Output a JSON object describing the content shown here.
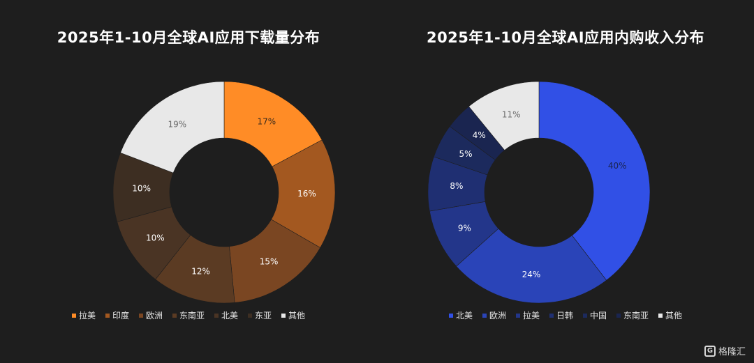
{
  "chart_data": [
    {
      "type": "pie",
      "title": "2025年1-10月全球AI应用下载量分布",
      "categories": [
        "拉美",
        "印度",
        "欧洲",
        "东南亚",
        "北美",
        "东亚",
        "其他"
      ],
      "values": [
        17,
        16,
        15,
        12,
        10,
        10,
        19
      ],
      "labels": [
        "17%",
        "16%",
        "15%",
        "12%",
        "10%",
        "10%",
        "19%"
      ],
      "colors": [
        "#ff8c26",
        "#a35820",
        "#7a4622",
        "#5b3b23",
        "#4a3424",
        "#3d2e22",
        "#e8e8e8"
      ],
      "label_colors": [
        "#3a2a1c",
        "#ffffff",
        "#ffffff",
        "#ffffff",
        "#ffffff",
        "#ffffff",
        "#6b6b6b"
      ],
      "legend": [
        "拉美",
        "印度",
        "欧洲",
        "东南亚",
        "北美",
        "东亚",
        "其他"
      ],
      "legend_colors": [
        "#ff8c26",
        "#a35820",
        "#7a4622",
        "#5b3b23",
        "#4a3424",
        "#3d2e22",
        "#e8e8e8"
      ],
      "legend_position": "bottom"
    },
    {
      "type": "pie",
      "title": "2025年1-10月全球AI应用内购收入分布",
      "categories": [
        "北美",
        "欧洲",
        "拉美",
        "日韩",
        "中国",
        "东南亚",
        "其他"
      ],
      "values": [
        40,
        24,
        9,
        8,
        5,
        4,
        11
      ],
      "labels": [
        "40%",
        "24%",
        "9%",
        "8%",
        "5%",
        "4%",
        "11%"
      ],
      "colors": [
        "#3150e6",
        "#2a44b8",
        "#23368a",
        "#1f2f72",
        "#1c2a5d",
        "#1a2550",
        "#e8e8e8"
      ],
      "label_colors": [
        "#1a2450",
        "#ffffff",
        "#ffffff",
        "#ffffff",
        "#ffffff",
        "#ffffff",
        "#6b6b6b"
      ],
      "legend": [
        "北美",
        "欧洲",
        "拉美",
        "日韩",
        "中国",
        "东南亚",
        "其他"
      ],
      "legend_colors": [
        "#3150e6",
        "#2a44b8",
        "#23368a",
        "#1f2f72",
        "#1c2a5d",
        "#1a2550",
        "#e8e8e8"
      ],
      "legend_position": "bottom"
    }
  ],
  "watermark": {
    "icon": "G",
    "text": "格隆汇"
  }
}
